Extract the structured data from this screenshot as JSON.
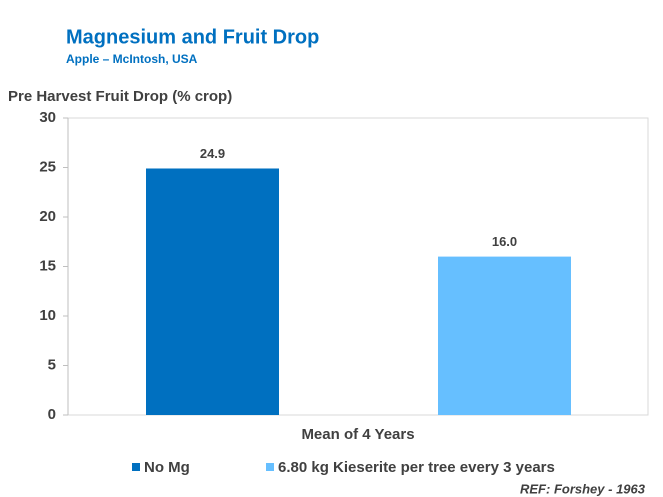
{
  "chart_data": {
    "type": "bar",
    "title": "Magnesium and Fruit Drop",
    "subtitle": "Apple – McIntosh, USA",
    "y_label": "Pre Harvest Fruit Drop (% crop)",
    "categories": [
      "Mean of 4 Years"
    ],
    "series": [
      {
        "name": "No Mg",
        "color": "#0070c0",
        "values": [
          24.9
        ]
      },
      {
        "name": "6.80 kg Kieserite per tree every 3 years",
        "color": "#66bfff",
        "values": [
          16
        ],
        "value_labels": [
          "16.0"
        ]
      }
    ],
    "ylim": [
      0,
      30
    ],
    "yticks": [
      0,
      5,
      10,
      15,
      20,
      25,
      30
    ],
    "legend": "bottom",
    "source": "REF: Forshey - 1963"
  }
}
